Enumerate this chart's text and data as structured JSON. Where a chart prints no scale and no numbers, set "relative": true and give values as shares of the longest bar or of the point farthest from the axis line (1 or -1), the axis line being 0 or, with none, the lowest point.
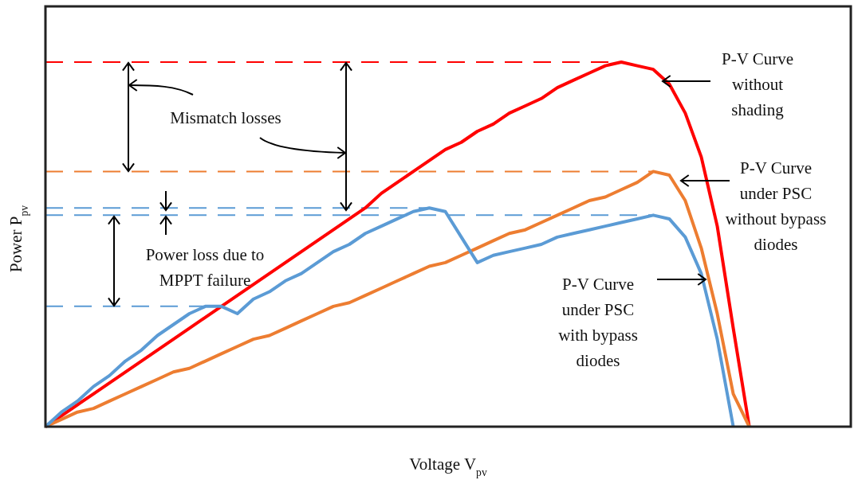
{
  "chart_data": {
    "type": "line",
    "relative": true,
    "xlabel": "Voltage V$_{pv}$",
    "ylabel": "Power P$_{pv}$",
    "categories": [
      null,
      null,
      null,
      null,
      null,
      null,
      null,
      null,
      null,
      null,
      null,
      null,
      null,
      null,
      null,
      null,
      null,
      null,
      null,
      null,
      null,
      null,
      null,
      null,
      null,
      null,
      null,
      null,
      null,
      null,
      null,
      null,
      null,
      null,
      null,
      null,
      null,
      null,
      null,
      null,
      null,
      null,
      null,
      null,
      null,
      null,
      null,
      null,
      null,
      null,
      null
    ],
    "series": [
      {
        "color": "#ff0000",
        "values": [
          0,
          0.03,
          0.06,
          0.09,
          0.12,
          0.15,
          0.18,
          0.21,
          0.24,
          0.27,
          0.3,
          0.33,
          0.36,
          0.39,
          0.42,
          0.45,
          0.48,
          0.51,
          0.54,
          0.57,
          0.6,
          0.64,
          0.67,
          0.7,
          0.73,
          0.76,
          0.78,
          0.81,
          0.83,
          0.86,
          0.88,
          0.9,
          0.93,
          0.95,
          0.97,
          0.99,
          1.0,
          0.99,
          0.98,
          0.94,
          0.86,
          0.74,
          0.55,
          0.27,
          0,
          null,
          null,
          null,
          null,
          null,
          null
        ]
      },
      {
        "color": "#ed7d31",
        "values": [
          0,
          0.02,
          0.04,
          0.05,
          0.07,
          0.09,
          0.11,
          0.13,
          0.15,
          0.16,
          0.18,
          0.2,
          0.22,
          0.24,
          0.25,
          0.27,
          0.29,
          0.31,
          0.33,
          0.34,
          0.36,
          0.38,
          0.4,
          0.42,
          0.44,
          0.45,
          0.47,
          0.49,
          0.51,
          0.53,
          0.54,
          0.56,
          0.58,
          0.6,
          0.62,
          0.63,
          0.65,
          0.67,
          0.7,
          0.69,
          0.62,
          0.49,
          0.31,
          0.09,
          0,
          null,
          null,
          null,
          null,
          null,
          null
        ]
      },
      {
        "color": "#5b9bd5",
        "values": [
          0,
          0.04,
          0.07,
          0.11,
          0.14,
          0.18,
          0.21,
          0.25,
          0.28,
          0.31,
          0.33,
          0.33,
          0.31,
          0.35,
          0.37,
          0.4,
          0.42,
          0.45,
          0.48,
          0.5,
          0.53,
          0.55,
          0.57,
          0.59,
          0.6,
          0.59,
          0.52,
          0.45,
          0.47,
          0.48,
          0.49,
          0.5,
          0.52,
          0.53,
          0.54,
          0.55,
          0.56,
          0.57,
          0.58,
          0.57,
          0.52,
          0.42,
          0.24,
          0,
          null,
          null,
          null,
          null,
          null,
          null,
          null
        ]
      }
    ],
    "line_style": "solid",
    "ref_lines": [
      {
        "axis": "y",
        "value": 1.0,
        "color": "#ff0000",
        "line_style": "dashed"
      },
      {
        "axis": "y",
        "value": 0.7,
        "color": "#ed7d31",
        "line_style": "dashed"
      },
      {
        "axis": "y",
        "value": 0.6,
        "color": "#5b9bd5",
        "line_style": "dashed"
      },
      {
        "axis": "y",
        "value": 0.58,
        "color": "#5b9bd5",
        "line_style": "dashed"
      },
      {
        "axis": "y",
        "value": 0.33,
        "color": "#5b9bd5",
        "line_style": "dashed"
      }
    ],
    "annotations": [
      "Mismatch losses",
      "Power loss due to MPPT failure",
      "P-V Curve without shading",
      "P-V Curve under PSC without bypass diodes",
      "P-V Curve under PSC with bypass diodes"
    ]
  }
}
